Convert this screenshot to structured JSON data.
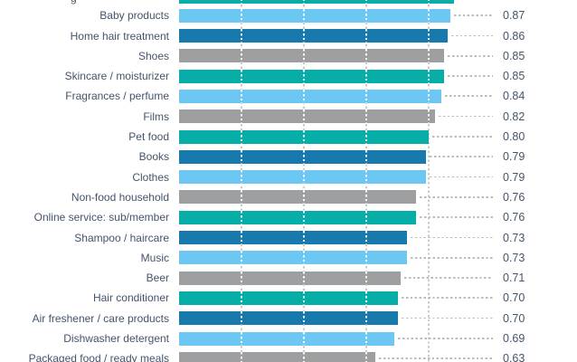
{
  "chart_data": {
    "type": "bar",
    "orientation": "horizontal",
    "title": "",
    "xlabel": "",
    "ylabel": "",
    "x_axis": {
      "min": 0,
      "max": 1,
      "gridlines": [
        0.2,
        0.4,
        0.6,
        0.8
      ],
      "gridline_style": "dashed",
      "tick_labels_visible": false
    },
    "legend": {
      "visible": false
    },
    "rows": [
      {
        "label": "Baby products",
        "value": 0.87,
        "value_label": "0.87",
        "color": "lightblue"
      },
      {
        "label": "Home hair treatment",
        "value": 0.86,
        "value_label": "0.86",
        "color": "darkblue"
      },
      {
        "label": "Shoes",
        "value": 0.85,
        "value_label": "0.85",
        "color": "gray"
      },
      {
        "label": "Skincare / moisturizer",
        "value": 0.85,
        "value_label": "0.85",
        "color": "teal"
      },
      {
        "label": "Fragrances / perfume",
        "value": 0.84,
        "value_label": "0.84",
        "color": "lightblue"
      },
      {
        "label": "Films",
        "value": 0.82,
        "value_label": "0.82",
        "color": "gray"
      },
      {
        "label": "Pet food",
        "value": 0.8,
        "value_label": "0.80",
        "color": "teal"
      },
      {
        "label": "Books",
        "value": 0.79,
        "value_label": "0.79",
        "color": "darkblue"
      },
      {
        "label": "Clothes",
        "value": 0.79,
        "value_label": "0.79",
        "color": "lightblue"
      },
      {
        "label": "Non-food household",
        "value": 0.76,
        "value_label": "0.76",
        "color": "gray"
      },
      {
        "label": "Online service: sub/member",
        "value": 0.76,
        "value_label": "0.76",
        "color": "teal"
      },
      {
        "label": "Shampoo / haircare",
        "value": 0.73,
        "value_label": "0.73",
        "color": "darkblue"
      },
      {
        "label": "Music",
        "value": 0.73,
        "value_label": "0.73",
        "color": "lightblue"
      },
      {
        "label": "Beer",
        "value": 0.71,
        "value_label": "0.71",
        "color": "gray"
      },
      {
        "label": "Hair conditioner",
        "value": 0.7,
        "value_label": "0.70",
        "color": "teal"
      },
      {
        "label": "Air freshener / care products",
        "value": 0.7,
        "value_label": "0.70",
        "color": "darkblue"
      },
      {
        "label": "Dishwasher detergent",
        "value": 0.69,
        "value_label": "0.69",
        "color": "lightblue"
      },
      {
        "label": "Packaged food / ready meals",
        "value": 0.63,
        "value_label": "0.63",
        "color": "gray"
      }
    ],
    "partial_top_row": {
      "label_fragment": "g",
      "value": 0.88,
      "color": "teal"
    },
    "palette": {
      "teal": "#07ada7",
      "lightblue": "#6cc8f2",
      "darkblue": "#1879ad",
      "gray": "#9d9fa0"
    },
    "colors": {
      "text": "#44546a",
      "leader_line": "#b9bdc1",
      "gridline": "#c8cbce",
      "background": "#ffffff"
    }
  }
}
